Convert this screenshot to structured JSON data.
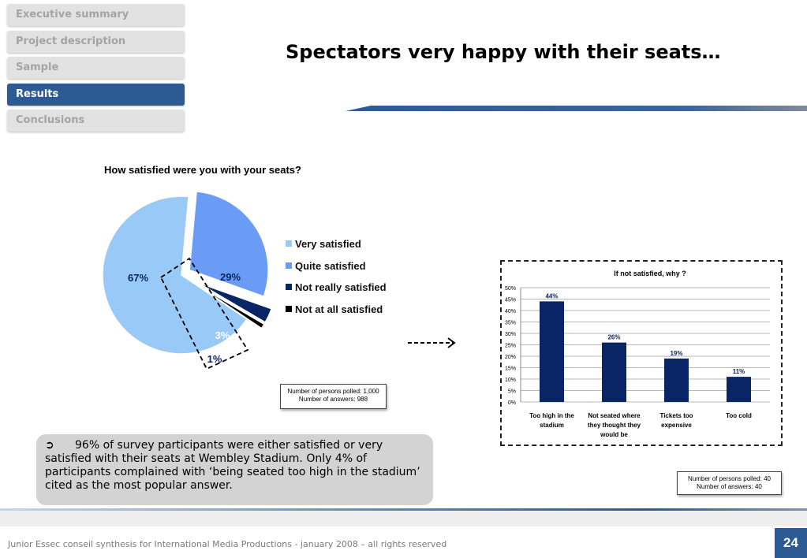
{
  "nav": {
    "items": [
      {
        "label": "Executive summary",
        "active": false
      },
      {
        "label": "Project description",
        "active": false
      },
      {
        "label": "Sample",
        "active": false
      },
      {
        "label": "Results",
        "active": true
      },
      {
        "label": "Conclusions",
        "active": false
      }
    ]
  },
  "page_title": "Spectators very happy with their seats…",
  "pie_note": {
    "line1": "Number of persons polled: 1,000",
    "line2": "Number of answers: 988"
  },
  "bar_note": {
    "line1": "Number of persons polled: 40",
    "line2": "Number of answers: 40"
  },
  "summary": {
    "bullet": "➲",
    "text": "96% of survey participants were either satisfied or very satisfied with their seats at Wembley Stadium. Only 4% of participants complained with ‘being seated too high in the stadium’ cited as the most popular answer."
  },
  "footer": {
    "text": "Junior Essec conseil synthesis for International Media Productions - january 2008 – all rights reserved",
    "page": "24"
  },
  "colors": {
    "accent": "#2e5a93",
    "very_satisfied": "#99c9f7",
    "quite_satisfied": "#6a9bf5",
    "not_really": "#0a2565",
    "not_at_all": "#000000",
    "bar": "#0a2565"
  },
  "chart_data": [
    {
      "type": "pie",
      "title": "How satisfied were you with your seats?",
      "categories": [
        "Very satisfied",
        "Quite satisfied",
        "Not really satisfied",
        "Not at all satisfied"
      ],
      "values": [
        67,
        29,
        3,
        1
      ],
      "labels": [
        "67%",
        "29%",
        "3%",
        "1%"
      ],
      "legend": "right"
    },
    {
      "type": "bar",
      "title": "If not satisfied, why ?",
      "categories": [
        "Too high in the stadium",
        "Not seated where they thought they would  be",
        "Tickets too expensive",
        "Too cold"
      ],
      "values": [
        44,
        26,
        19,
        11
      ],
      "value_labels": [
        "44%",
        "26%",
        "19%",
        "11%"
      ],
      "ylim": [
        0,
        50
      ],
      "yticks": [
        "0%",
        "5%",
        "10%",
        "15%",
        "20%",
        "25%",
        "30%",
        "35%",
        "40%",
        "45%",
        "50%"
      ],
      "grid": true,
      "xlabel": "",
      "ylabel": ""
    }
  ]
}
